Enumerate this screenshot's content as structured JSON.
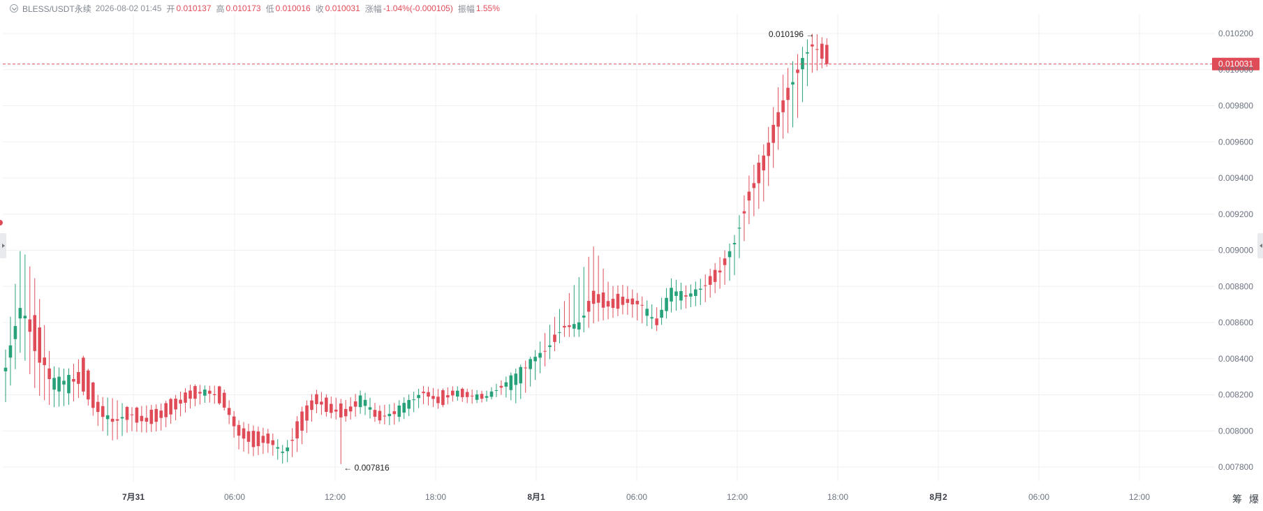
{
  "header": {
    "symbol": "BLESS/USDT永续",
    "time": "2026-08-02 01:45",
    "open_label": "开",
    "open": "0.010137",
    "high_label": "高",
    "high": "0.010173",
    "low_label": "低",
    "low": "0.010016",
    "close_label": "收",
    "close": "0.010031",
    "change_label": "涨幅",
    "change": "-1.04%(-0.000105)",
    "amplitude_label": "振幅",
    "amplitude": "1.55%"
  },
  "colors": {
    "up": "#26a17a",
    "down": "#e04b58",
    "axis_text": "#6b7280",
    "grid": "#eef0f3"
  },
  "controls": {
    "btn_a": "筹",
    "btn_b": "爆"
  },
  "chart_data": {
    "type": "candlestick",
    "interval": "15m",
    "ylim": [
      0.00772,
      0.01024
    ],
    "yticks": [
      "0.010200",
      "0.010000",
      "0.009800",
      "0.009600",
      "0.009400",
      "0.009200",
      "0.009000",
      "0.008800",
      "0.008600",
      "0.008400",
      "0.008200",
      "0.008000",
      "0.007800"
    ],
    "xticks": [
      "7月31",
      "06:00",
      "12:00",
      "18:00",
      "8月1",
      "06:00",
      "12:00",
      "18:00",
      "8月2",
      "06:00",
      "12:00"
    ],
    "xticks_bold": [
      true,
      false,
      false,
      false,
      true,
      false,
      false,
      false,
      true,
      false,
      false
    ],
    "current_price": "0.010031",
    "max_label": "0.010196",
    "min_label": "0.007816",
    "anchors": [
      [
        0.00833,
        0.00845,
        0.00816,
        0.00835
      ],
      [
        0.00861,
        0.00903,
        0.00845,
        0.00872
      ],
      [
        0.00862,
        0.00882,
        0.00821,
        0.00842
      ],
      [
        0.00825,
        0.00836,
        0.00813,
        0.00828
      ],
      [
        0.00822,
        0.00834,
        0.00814,
        0.0083
      ],
      [
        0.00841,
        0.00842,
        0.0082,
        0.00822
      ],
      [
        0.00815,
        0.00819,
        0.00802,
        0.0081
      ],
      [
        0.00805,
        0.00818,
        0.00794,
        0.00805
      ],
      [
        0.00812,
        0.00813,
        0.008,
        0.00808
      ],
      [
        0.0081,
        0.00814,
        0.00799,
        0.00803
      ],
      [
        0.00811,
        0.00815,
        0.008,
        0.00807
      ],
      [
        0.00818,
        0.0082,
        0.00806,
        0.00812
      ],
      [
        0.00825,
        0.00826,
        0.00813,
        0.00817
      ],
      [
        0.0082,
        0.00825,
        0.00816,
        0.00823
      ],
      [
        0.00823,
        0.00825,
        0.00814,
        0.00815
      ],
      [
        0.00803,
        0.00806,
        0.0079,
        0.00798
      ],
      [
        0.008,
        0.00803,
        0.00786,
        0.00791
      ],
      [
        0.00797,
        0.00801,
        0.00788,
        0.00794
      ],
      [
        0.00786,
        0.00791,
        0.00781,
        0.00788
      ],
      [
        0.00809,
        0.00812,
        0.0079,
        0.00798
      ],
      [
        0.00821,
        0.00823,
        0.0081,
        0.00815
      ],
      [
        0.00815,
        0.00819,
        0.00807,
        0.0081
      ],
      [
        0.00812,
        0.00817,
        0.00805,
        0.00808
      ],
      [
        0.00815,
        0.00823,
        0.0081,
        0.0082
      ],
      [
        0.0081,
        0.00814,
        0.00804,
        0.00806
      ],
      [
        0.0081,
        0.00815,
        0.00803,
        0.00809
      ],
      [
        0.00812,
        0.0082,
        0.00808,
        0.00817
      ],
      [
        0.00822,
        0.00825,
        0.00815,
        0.00821
      ],
      [
        0.0082,
        0.00823,
        0.00812,
        0.00814
      ],
      [
        0.00822,
        0.00825,
        0.00817,
        0.00821
      ],
      [
        0.0082,
        0.00823,
        0.00815,
        0.00819
      ],
      [
        0.00818,
        0.00822,
        0.00816,
        0.00819
      ],
      [
        0.00825,
        0.00828,
        0.0082,
        0.00824
      ],
      [
        0.00826,
        0.00835,
        0.00815,
        0.00832
      ],
      [
        0.00837,
        0.00842,
        0.00826,
        0.0084
      ],
      [
        0.00843,
        0.00857,
        0.00838,
        0.00847
      ],
      [
        0.0086,
        0.00871,
        0.00852,
        0.00856
      ],
      [
        0.00856,
        0.00885,
        0.00852,
        0.0086
      ],
      [
        0.00877,
        0.00903,
        0.0086,
        0.00872
      ],
      [
        0.00872,
        0.0088,
        0.00862,
        0.00868
      ],
      [
        0.00875,
        0.00881,
        0.00865,
        0.0087
      ],
      [
        0.00868,
        0.00875,
        0.0086,
        0.00872
      ],
      [
        0.00862,
        0.00868,
        0.00855,
        0.00858
      ],
      [
        0.00872,
        0.00885,
        0.00866,
        0.0088
      ],
      [
        0.00875,
        0.0088,
        0.00868,
        0.00874
      ],
      [
        0.00878,
        0.00885,
        0.0087,
        0.0088
      ],
      [
        0.00889,
        0.00895,
        0.00878,
        0.00885
      ],
      [
        0.00902,
        0.00907,
        0.00885,
        0.00903
      ],
      [
        0.00933,
        0.00942,
        0.00915,
        0.00928
      ],
      [
        0.00955,
        0.0096,
        0.00928,
        0.00945
      ],
      [
        0.0098,
        0.00995,
        0.0096,
        0.00972
      ],
      [
        0.00995,
        0.01007,
        0.0097,
        0.00998
      ],
      [
        0.01013,
        0.0102,
        0.00998,
        0.01014
      ],
      [
        0.01014,
        0.01017,
        0.01002,
        0.01003
      ]
    ]
  }
}
